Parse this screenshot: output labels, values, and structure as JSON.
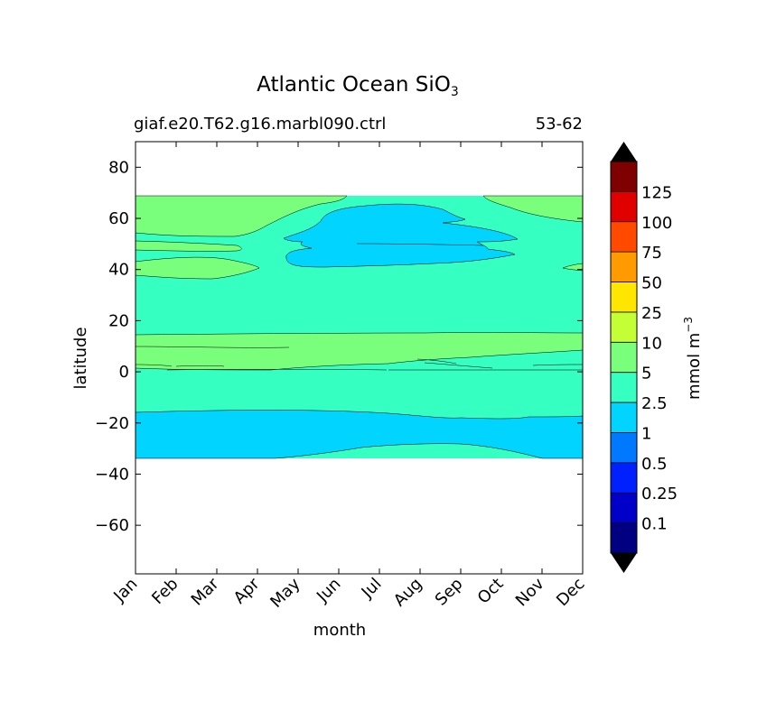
{
  "chart_data": {
    "type": "contour",
    "title": "Atlantic Ocean SiO",
    "title_subscript": "3",
    "subtitle_left": "giaf.e20.T62.g16.marbl090.ctrl",
    "subtitle_right": "53-62",
    "xlabel": "month",
    "ylabel": "latitude",
    "x_categories": [
      "Jan",
      "Feb",
      "Mar",
      "Apr",
      "May",
      "Jun",
      "Jul",
      "Aug",
      "Sep",
      "Oct",
      "Nov",
      "Dec"
    ],
    "xlim": [
      1,
      12
    ],
    "ylim": [
      -79,
      90
    ],
    "yticks": [
      80,
      60,
      40,
      20,
      0,
      -20,
      -40,
      -60
    ],
    "ytick_labels": [
      "80",
      "60",
      "40",
      "20",
      "0",
      "−20",
      "−40",
      "−60"
    ],
    "data_extent_lat": [
      -34,
      68.5
    ],
    "colorbar": {
      "label": "mmol m",
      "label_superscript": "−3",
      "levels": [
        0.1,
        0.25,
        0.5,
        1,
        2.5,
        5,
        10,
        25,
        50,
        75,
        100,
        125
      ],
      "level_labels": [
        "0.1",
        "0.25",
        "0.5",
        "1",
        "2.5",
        "5",
        "10",
        "25",
        "50",
        "75",
        "100",
        "125"
      ],
      "colors": [
        "#000080",
        "#0000c8",
        "#0020ff",
        "#0078ff",
        "#00d4ff",
        "#36ffc2",
        "#7aff7c",
        "#c4ff36",
        "#ffe600",
        "#ff9a00",
        "#ff4a00",
        "#e00000",
        "#7f0000"
      ],
      "under_color": "#000000",
      "over_color": "#000000"
    },
    "regions": [
      {
        "value_range": "2.5-5",
        "color": "#36ffc2",
        "description": "background field -34 to 68.5"
      },
      {
        "value_range": "5-10",
        "color": "#7aff7c",
        "lat_band": [
          54,
          68.5
        ],
        "months": "Jan-Jun, Oct-Dec"
      },
      {
        "value_range": "5-10",
        "color": "#7aff7c",
        "lat_band": [
          37,
          45
        ],
        "months": "Jan-Apr"
      },
      {
        "value_range": "1-2.5",
        "color": "#00d4ff",
        "lat_band": [
          41,
          64
        ],
        "months": "May-Sep"
      },
      {
        "value_range": "5-10",
        "color": "#7aff7c",
        "lat_band": [
          0,
          14
        ],
        "months": "Jan-Dec"
      },
      {
        "value_range": "1-2.5",
        "color": "#00d4ff",
        "lat_band": [
          -34,
          -16
        ],
        "months": "Jan-Dec"
      }
    ]
  }
}
